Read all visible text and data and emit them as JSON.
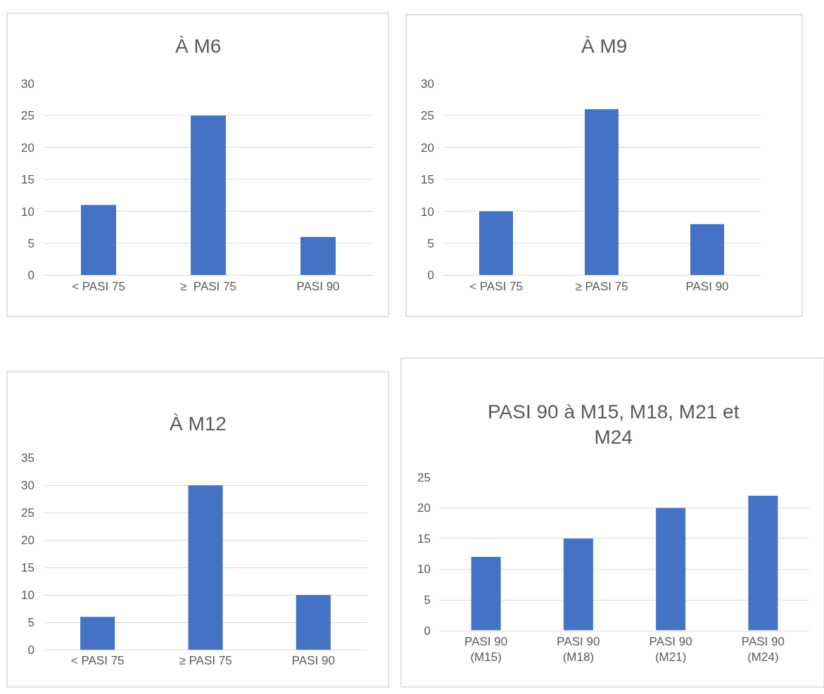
{
  "chart_data": [
    {
      "type": "bar",
      "title": "À M6",
      "categories": [
        "< PASI 75",
        "≥  PASI 75",
        "PASI 90"
      ],
      "values": [
        11,
        25,
        6
      ],
      "color": "#4472c4",
      "ylim": [
        0,
        30
      ],
      "yticks": [
        0,
        5,
        10,
        15,
        20,
        25,
        30
      ],
      "grid": "y"
    },
    {
      "type": "bar",
      "title": "À M9",
      "categories": [
        "< PASI 75",
        "≥ PASI 75",
        "PASI 90"
      ],
      "values": [
        10,
        26,
        8
      ],
      "color": "#4472c4",
      "ylim": [
        0,
        30
      ],
      "yticks": [
        0,
        5,
        10,
        15,
        20,
        25,
        30
      ],
      "grid": "y"
    },
    {
      "type": "bar",
      "title": "À M12",
      "categories": [
        "< PASI 75",
        "≥ PASI 75",
        "PASI 90"
      ],
      "values": [
        6,
        30,
        10
      ],
      "color": "#4472c4",
      "ylim": [
        0,
        35
      ],
      "yticks": [
        0,
        5,
        10,
        15,
        20,
        25,
        30,
        35
      ],
      "grid": "y"
    },
    {
      "type": "bar",
      "title": "PASI 90 à M15, M18, M21 et M24",
      "categories": [
        "PASI 90\n(M15)",
        "PASI 90\n(M18)",
        "PASI 90\n(M21)",
        "PASI 90\n(M24)"
      ],
      "values": [
        12,
        15,
        20,
        22
      ],
      "color": "#4472c4",
      "ylim": [
        0,
        25
      ],
      "yticks": [
        0,
        5,
        10,
        15,
        20,
        25
      ],
      "grid": "y"
    }
  ]
}
